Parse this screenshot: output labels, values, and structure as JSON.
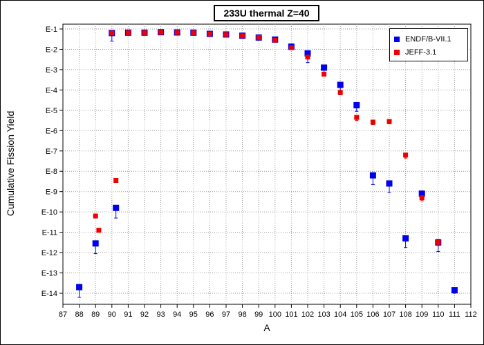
{
  "chart_data": {
    "type": "scatter",
    "title": "233U thermal Z=40",
    "xlabel": "A",
    "ylabel": "Cumulative Fission Yield",
    "xlim": [
      87,
      112
    ],
    "x_ticks": [
      87,
      88,
      89,
      90,
      91,
      92,
      93,
      94,
      95,
      96,
      97,
      98,
      99,
      100,
      101,
      102,
      103,
      104,
      105,
      106,
      107,
      108,
      109,
      110,
      111,
      112
    ],
    "y_scale": "log",
    "ylim": [
      -14.5,
      -1
    ],
    "y_ticks": [
      {
        "exp": -1,
        "label": "E-1"
      },
      {
        "exp": -2,
        "label": "E-2"
      },
      {
        "exp": -3,
        "label": "E-3"
      },
      {
        "exp": -4,
        "label": "E-4"
      },
      {
        "exp": -5,
        "label": "E-5"
      },
      {
        "exp": -6,
        "label": "E-6"
      },
      {
        "exp": -7,
        "label": "E-7"
      },
      {
        "exp": -8,
        "label": "E-8"
      },
      {
        "exp": -9,
        "label": "E-9"
      },
      {
        "exp": -10,
        "label": "E-10"
      },
      {
        "exp": -11,
        "label": "E-11"
      },
      {
        "exp": -12,
        "label": "E-12"
      },
      {
        "exp": -13,
        "label": "E-13"
      },
      {
        "exp": -14,
        "label": "E-14"
      }
    ],
    "grid": true,
    "legend_position": "top-right",
    "series": [
      {
        "name": "ENDF/B-VII.1",
        "color": "#0000ee",
        "marker": "square",
        "points": [
          {
            "x": 88,
            "log10y": -13.7,
            "err_lo": 0.5,
            "err_hi": 0.1
          },
          {
            "x": 89,
            "log10y": -11.55,
            "err_lo": 0.5,
            "err_hi": 0.1
          },
          {
            "x": 90.25,
            "log10y": -9.8,
            "err_lo": 0.5,
            "err_hi": 0.1
          },
          {
            "x": 90,
            "log10y": -1.2,
            "err_lo": 0.4,
            "err_hi": 0.05
          },
          {
            "x": 91,
            "log10y": -1.18,
            "err_lo": 0.1,
            "err_hi": 0.04
          },
          {
            "x": 92,
            "log10y": -1.18,
            "err_lo": 0.05,
            "err_hi": 0.03
          },
          {
            "x": 93,
            "log10y": -1.16,
            "err_lo": 0.05,
            "err_hi": 0.03
          },
          {
            "x": 94,
            "log10y": -1.17,
            "err_lo": 0.05,
            "err_hi": 0.03
          },
          {
            "x": 95,
            "log10y": -1.18,
            "err_lo": 0.05,
            "err_hi": 0.03
          },
          {
            "x": 96,
            "log10y": -1.24,
            "err_lo": 0.05,
            "err_hi": 0.03
          },
          {
            "x": 97,
            "log10y": -1.27,
            "err_lo": 0.05,
            "err_hi": 0.03
          },
          {
            "x": 98,
            "log10y": -1.33,
            "err_lo": 0.08,
            "err_hi": 0.03
          },
          {
            "x": 99,
            "log10y": -1.42,
            "err_lo": 0.08,
            "err_hi": 0.03
          },
          {
            "x": 100,
            "log10y": -1.52,
            "err_lo": 0.05,
            "err_hi": 0.03
          },
          {
            "x": 101,
            "log10y": -1.87,
            "err_lo": 0.1,
            "err_hi": 0.05
          },
          {
            "x": 102,
            "log10y": -2.2,
            "err_lo": 0.45,
            "err_hi": 0.1
          },
          {
            "x": 103,
            "log10y": -2.9,
            "err_lo": 0.3,
            "err_hi": 0.1
          },
          {
            "x": 104,
            "log10y": -3.75,
            "err_lo": 0.3,
            "err_hi": 0.1
          },
          {
            "x": 105,
            "log10y": -4.75,
            "err_lo": 0.3,
            "err_hi": 0.1
          },
          {
            "x": 106,
            "log10y": -8.2,
            "err_lo": 0.45,
            "err_hi": 0.1
          },
          {
            "x": 107,
            "log10y": -8.6,
            "err_lo": 0.45,
            "err_hi": 0.1
          },
          {
            "x": 108,
            "log10y": -11.3,
            "err_lo": 0.45,
            "err_hi": 0.1
          },
          {
            "x": 109,
            "log10y": -9.1,
            "err_lo": 0.3,
            "err_hi": 0.1
          },
          {
            "x": 110,
            "log10y": -11.5,
            "err_lo": 0.45,
            "err_hi": 0.15
          },
          {
            "x": 111,
            "log10y": -13.85,
            "err_lo": 0.15,
            "err_hi": 0.1
          }
        ]
      },
      {
        "name": "JEFF-3.1",
        "color": "#ee0000",
        "marker": "square",
        "points": [
          {
            "x": 89,
            "log10y": -10.2,
            "err_lo": 0.1,
            "err_hi": 0.08
          },
          {
            "x": 89.2,
            "log10y": -10.9,
            "err_lo": 0.1,
            "err_hi": 0.08
          },
          {
            "x": 90.25,
            "log10y": -8.45,
            "err_lo": 0.1,
            "err_hi": 0.08
          },
          {
            "x": 90,
            "log10y": -1.2,
            "err_lo": 0.1,
            "err_hi": 0.05
          },
          {
            "x": 91,
            "log10y": -1.18,
            "err_lo": 0.05,
            "err_hi": 0.03
          },
          {
            "x": 92,
            "log10y": -1.18,
            "err_lo": 0.05,
            "err_hi": 0.03
          },
          {
            "x": 93,
            "log10y": -1.16,
            "err_lo": 0.05,
            "err_hi": 0.03
          },
          {
            "x": 94,
            "log10y": -1.17,
            "err_lo": 0.05,
            "err_hi": 0.03
          },
          {
            "x": 95,
            "log10y": -1.18,
            "err_lo": 0.05,
            "err_hi": 0.03
          },
          {
            "x": 96,
            "log10y": -1.24,
            "err_lo": 0.05,
            "err_hi": 0.03
          },
          {
            "x": 97,
            "log10y": -1.27,
            "err_lo": 0.05,
            "err_hi": 0.03
          },
          {
            "x": 98,
            "log10y": -1.33,
            "err_lo": 0.05,
            "err_hi": 0.03
          },
          {
            "x": 99,
            "log10y": -1.42,
            "err_lo": 0.05,
            "err_hi": 0.03
          },
          {
            "x": 100,
            "log10y": -1.55,
            "err_lo": 0.05,
            "err_hi": 0.03
          },
          {
            "x": 101,
            "log10y": -1.92,
            "err_lo": 0.08,
            "err_hi": 0.04
          },
          {
            "x": 102,
            "log10y": -2.38,
            "err_lo": 0.1,
            "err_hi": 0.05
          },
          {
            "x": 103,
            "log10y": -3.22,
            "err_lo": 0.1,
            "err_hi": 0.05
          },
          {
            "x": 104,
            "log10y": -4.12,
            "err_lo": 0.12,
            "err_hi": 0.05
          },
          {
            "x": 105,
            "log10y": -5.35,
            "err_lo": 0.15,
            "err_hi": 0.08
          },
          {
            "x": 106,
            "log10y": -5.58,
            "err_lo": 0.12,
            "err_hi": 0.06
          },
          {
            "x": 107,
            "log10y": -5.55,
            "err_lo": 0.12,
            "err_hi": 0.06
          },
          {
            "x": 108,
            "log10y": -7.2,
            "err_lo": 0.15,
            "err_hi": 0.06
          },
          {
            "x": 109,
            "log10y": -9.3,
            "err_lo": 0.15,
            "err_hi": 0.06
          },
          {
            "x": 110,
            "log10y": -11.5,
            "err_lo": 0.15,
            "err_hi": 0.06
          }
        ]
      }
    ]
  }
}
